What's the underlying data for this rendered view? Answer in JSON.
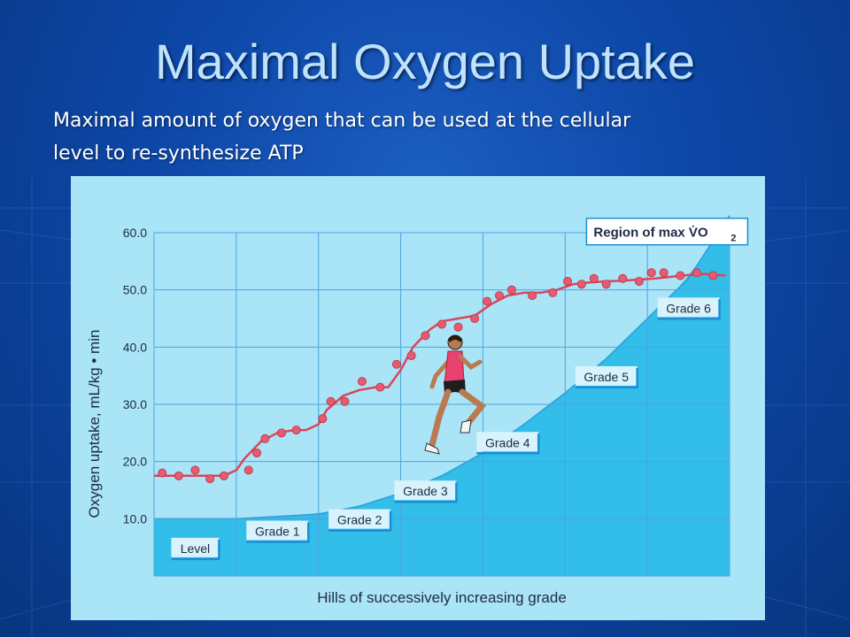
{
  "slide": {
    "title": "Maximal Oxygen Uptake",
    "subtitle_line1": "Maximal amount of oxygen that can be used at the cellular",
    "subtitle_line2": "level to re-synthesize ATP"
  },
  "colors": {
    "slide_bg": "#0d47a8",
    "title_text": "#bfe3ff",
    "plot_bg": "#a9e4f7",
    "grade_area": "#1fb6e6",
    "curve": "#d9475a",
    "point": "#e85a6e",
    "grid": "#4fa3e0"
  },
  "chart_data": {
    "type": "scatter",
    "title": "",
    "xlabel": "Hills of successively increasing grade",
    "ylabel": "Oxygen uptake, mL/kg • min",
    "ylim": [
      0,
      60
    ],
    "yticks": [
      "60.0",
      "50.0",
      "40.0",
      "30.0",
      "20.0",
      "10.0"
    ],
    "ytick_values": [
      60,
      50,
      40,
      30,
      20,
      10
    ],
    "grid": true,
    "categories": [
      "Level",
      "Grade 1",
      "Grade 2",
      "Grade 3",
      "Grade 4",
      "Grade 5",
      "Grade 6"
    ],
    "grade_labels": [
      {
        "text": "Level",
        "stage": 0.5,
        "y": 4.5
      },
      {
        "text": "Grade 1",
        "stage": 1.5,
        "y": 7.5
      },
      {
        "text": "Grade 2",
        "stage": 2.5,
        "y": 9.5
      },
      {
        "text": "Grade 3",
        "stage": 3.3,
        "y": 14.5
      },
      {
        "text": "Grade 4",
        "stage": 4.3,
        "y": 23.0
      },
      {
        "text": "Grade 5",
        "stage": 5.5,
        "y": 34.5
      },
      {
        "text": "Grade 6",
        "stage": 6.5,
        "y": 46.5
      }
    ],
    "annotation": {
      "text": "Region of max V̇O",
      "subscript": "2",
      "stage": 6.1,
      "y": 58.5
    },
    "grade_area": {
      "x": [
        0,
        1,
        2,
        2.5,
        3,
        3.5,
        4,
        4.5,
        5,
        5.5,
        6,
        6.5,
        7
      ],
      "y": [
        10,
        10,
        10.8,
        12.2,
        14.5,
        17.5,
        21.5,
        26.5,
        32,
        38,
        45,
        52,
        63
      ]
    },
    "series": [
      {
        "type": "line",
        "x": [
          0,
          0.85,
          1.0,
          1.1,
          1.3,
          1.5,
          1.7,
          1.85,
          2.0,
          2.1,
          2.3,
          2.5,
          2.7,
          2.85,
          3.0,
          3.15,
          3.35,
          3.5,
          3.7,
          3.9,
          4.1,
          4.3,
          4.5,
          4.7,
          4.9,
          5.1,
          5.3,
          5.5,
          5.7,
          5.9,
          6.1,
          6.3,
          6.5,
          6.7,
          6.95
        ],
        "y": [
          17.5,
          17.5,
          18.5,
          20.5,
          23.5,
          25,
          25.5,
          25.5,
          26.5,
          29,
          31.5,
          32.5,
          33,
          33,
          36,
          40,
          43,
          44.5,
          45,
          45.5,
          47.5,
          49,
          49.5,
          49.5,
          50,
          51,
          51.3,
          51.5,
          51.6,
          51.8,
          52,
          52.3,
          52.6,
          52.8,
          52.5
        ]
      },
      {
        "type": "scatter",
        "x": [
          0.1,
          0.3,
          0.5,
          0.68,
          0.85,
          1.15,
          1.25,
          1.35,
          1.55,
          1.73,
          2.05,
          2.15,
          2.32,
          2.53,
          2.75,
          2.95,
          3.13,
          3.3,
          3.5,
          3.7,
          3.9,
          4.05,
          4.2,
          4.35,
          4.6,
          4.85,
          5.03,
          5.2,
          5.35,
          5.5,
          5.7,
          5.9,
          6.05,
          6.2,
          6.4,
          6.6,
          6.8
        ],
        "y": [
          18,
          17.5,
          18.5,
          17,
          17.5,
          18.5,
          21.5,
          24,
          25,
          25.5,
          27.5,
          30.5,
          30.5,
          34,
          33,
          37,
          38.5,
          42,
          44,
          43.5,
          45,
          48,
          49,
          50,
          49,
          49.5,
          51.5,
          51,
          52,
          51,
          52,
          51.5,
          53,
          53,
          52.5,
          53,
          52.5
        ]
      }
    ]
  }
}
